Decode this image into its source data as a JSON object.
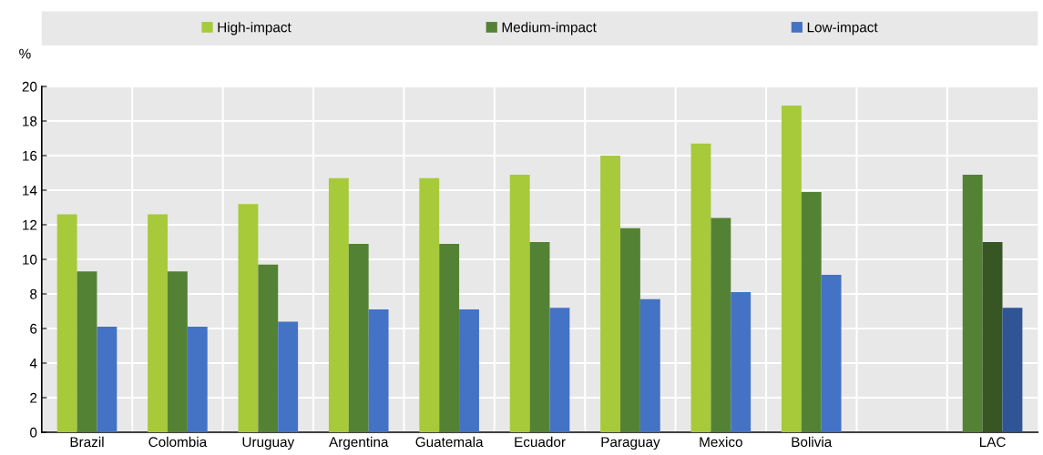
{
  "chart_data": {
    "type": "bar",
    "ylabel": "%",
    "categories": [
      "Brazil",
      "Colombia",
      "Uruguay",
      "Argentina",
      "Guatemala",
      "Ecuador",
      "Paraguay",
      "Mexico",
      "Bolivia",
      null,
      "LAC"
    ],
    "series": [
      {
        "name": "High-impact",
        "color": "#a6ca3a",
        "colors": [
          "#a6ca3a",
          "#a6ca3a",
          "#a6ca3a",
          "#a6ca3a",
          "#a6ca3a",
          "#a6ca3a",
          "#a6ca3a",
          "#a6ca3a",
          "#a6ca3a",
          "#a6ca3a",
          "#548235"
        ],
        "values": [
          12.6,
          12.6,
          13.2,
          14.7,
          14.7,
          14.9,
          16.0,
          16.7,
          18.9,
          null,
          14.9
        ]
      },
      {
        "name": "Medium-impact",
        "color": "#548235",
        "colors": [
          "#548235",
          "#548235",
          "#548235",
          "#548235",
          "#548235",
          "#548235",
          "#548235",
          "#548235",
          "#548235",
          "#548235",
          "#375623"
        ],
        "values": [
          9.3,
          9.3,
          9.7,
          10.9,
          10.9,
          11.0,
          11.8,
          12.4,
          13.9,
          null,
          11.0
        ]
      },
      {
        "name": "Low-impact",
        "color": "#4472c4",
        "colors": [
          "#4472c4",
          "#4472c4",
          "#4472c4",
          "#4472c4",
          "#4472c4",
          "#4472c4",
          "#4472c4",
          "#4472c4",
          "#4472c4",
          "#4472c4",
          "#2f5597"
        ],
        "values": [
          6.1,
          6.1,
          6.4,
          7.1,
          7.1,
          7.2,
          7.7,
          8.1,
          9.1,
          null,
          7.2
        ]
      }
    ],
    "ylim": [
      0,
      20
    ],
    "yticks": [
      0,
      2,
      4,
      6,
      8,
      10,
      12,
      14,
      16,
      18,
      20
    ],
    "grid": true,
    "legend": "top"
  }
}
